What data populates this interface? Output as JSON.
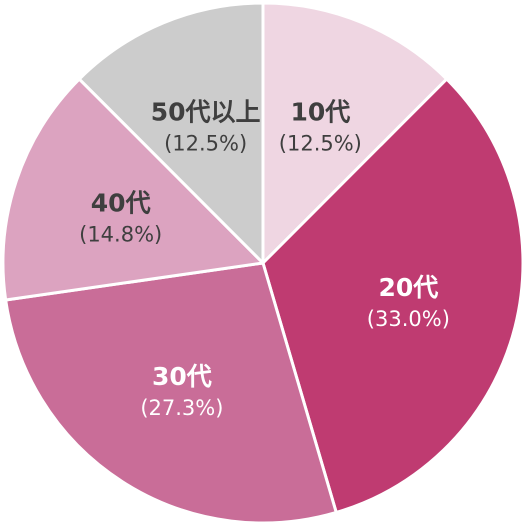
{
  "chart_data": {
    "type": "pie",
    "slices": [
      {
        "label": "10代",
        "percent_text": "(12.5%)",
        "value": 12.5,
        "color": "#efd6e2",
        "text_color": "#3f3f3f"
      },
      {
        "label": "20代",
        "percent_text": "(33.0%)",
        "value": 33.0,
        "color": "#bf3b71",
        "text_color": "#ffffff"
      },
      {
        "label": "30代",
        "percent_text": "(27.3%)",
        "value": 27.3,
        "color": "#c96d98",
        "text_color": "#ffffff"
      },
      {
        "label": "40代",
        "percent_text": "(14.8%)",
        "value": 14.8,
        "color": "#dca3c0",
        "text_color": "#3f3f3f"
      },
      {
        "label": "50代以上",
        "percent_text": "(12.5%)",
        "value": 12.5,
        "color": "#cccccc",
        "text_color": "#3f3f3f"
      }
    ],
    "start_angle": "12 o'clock",
    "direction": "clockwise",
    "legend": "none"
  }
}
